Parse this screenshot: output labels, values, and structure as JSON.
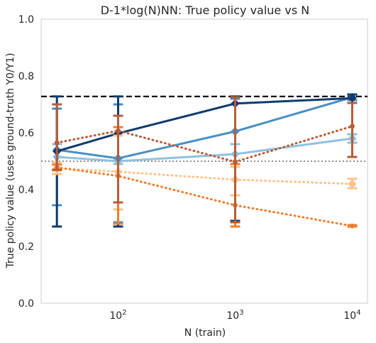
{
  "chart_data": {
    "type": "line",
    "title": "D-1*log(N)NN: True policy value vs N",
    "xlabel": "N (train)",
    "ylabel": "True policy value (uses ground-truth Y0/Y1)",
    "xscale": "log",
    "xlim": [
      22,
      13500
    ],
    "ylim": [
      0.0,
      1.0
    ],
    "grid": false,
    "x": [
      30,
      100,
      1000,
      10000
    ],
    "x_ticks": [
      {
        "value": 100,
        "base": "10",
        "exp": "2"
      },
      {
        "value": 1000,
        "base": "10",
        "exp": "3"
      },
      {
        "value": 10000,
        "base": "10",
        "exp": "4"
      }
    ],
    "y_ticks": [
      "0.0",
      "0.2",
      "0.4",
      "0.6",
      "0.8",
      "1.0"
    ],
    "y_tick_values": [
      0.0,
      0.2,
      0.4,
      0.6,
      0.8,
      1.0
    ],
    "reference_lines": [
      {
        "y": 0.728,
        "style": "dashed",
        "color": "#000000"
      },
      {
        "y": 0.5,
        "style": "dotted",
        "color": "#7f7f7f"
      }
    ],
    "series": [
      {
        "color": "#8fc1de",
        "style": "solid",
        "marker": "diamond",
        "values": [
          0.515,
          0.5,
          0.525,
          0.58
        ],
        "err_low": [
          0.47,
          0.49,
          0.49,
          0.565
        ],
        "err_high": [
          0.56,
          0.51,
          0.56,
          0.595
        ]
      },
      {
        "color": "#4a8fc4",
        "style": "solid",
        "marker": "diamond",
        "values": [
          0.54,
          0.51,
          0.605,
          0.725
        ],
        "err_low": [
          0.345,
          0.285,
          0.49,
          0.715
        ],
        "err_high": [
          0.685,
          0.7,
          0.72,
          0.735
        ]
      },
      {
        "color": "#0e3b6e",
        "style": "solid",
        "marker": "diamond",
        "values": [
          0.535,
          0.598,
          0.703,
          0.722
        ],
        "err_low": [
          0.27,
          0.27,
          0.29,
          0.705
        ],
        "err_high": [
          0.728,
          0.728,
          0.728,
          0.735
        ]
      },
      {
        "color": "#fdc38d",
        "style": "dotted",
        "marker": "diamond",
        "values": [
          0.475,
          0.463,
          0.435,
          0.42
        ],
        "err_low": [
          0.455,
          0.33,
          0.38,
          0.405
        ],
        "err_high": [
          0.495,
          0.59,
          0.48,
          0.438
        ]
      },
      {
        "color": "#f07d2e",
        "style": "dotted",
        "marker": "circle",
        "values": [
          0.478,
          0.448,
          0.345,
          0.272
        ],
        "err_low": [
          0.468,
          0.28,
          0.27,
          0.27
        ],
        "err_high": [
          0.488,
          0.62,
          0.49,
          0.275
        ]
      },
      {
        "color": "#b85c37",
        "style": "dotted",
        "marker": "circle",
        "values": [
          0.565,
          0.607,
          0.498,
          0.623
        ],
        "err_low": [
          0.47,
          0.355,
          0.285,
          0.515
        ],
        "err_high": [
          0.7,
          0.66,
          0.725,
          0.705
        ]
      }
    ]
  }
}
